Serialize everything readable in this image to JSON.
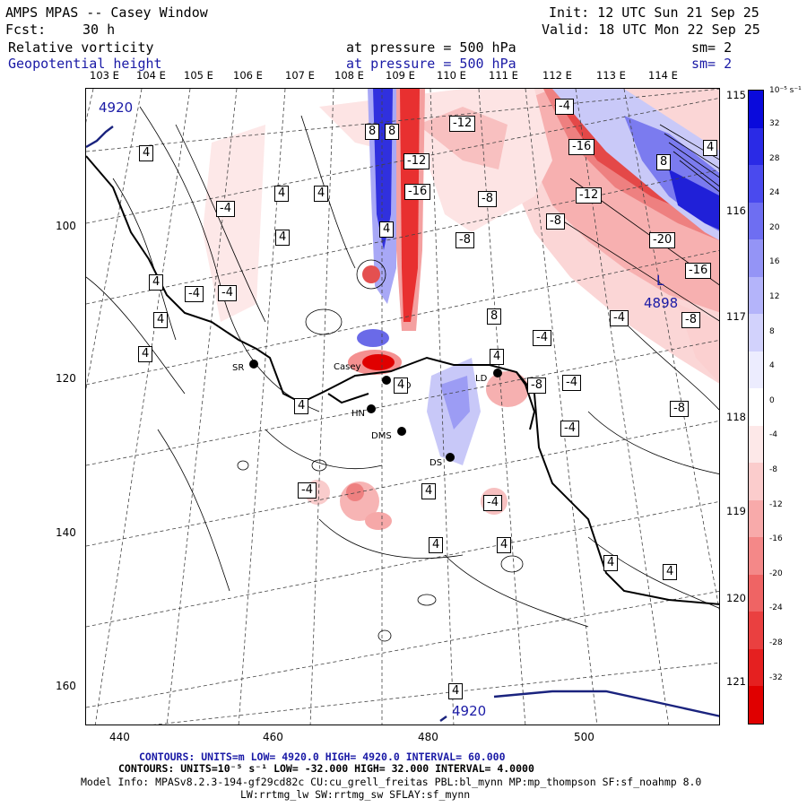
{
  "header": {
    "title": "AMPS MPAS -- Casey Window",
    "init": "Init: 12 UTC Sun 21 Sep 25",
    "fcst_label": "Fcst:",
    "fcst_value": "30 h",
    "valid": "Valid: 18 UTC Mon 22 Sep 25",
    "field1_name": "Relative vorticity",
    "field1_level": "at pressure =  500 hPa",
    "field1_sm": "sm= 2",
    "field2_name": "Geopotential height",
    "field2_level": "at pressure =  500 hPa",
    "field2_sm": "sm= 2"
  },
  "axes": {
    "lon_labels": [
      "103 E",
      "104 E",
      "105 E",
      "106 E",
      "107 E",
      "108 E",
      "109 E",
      "110 E",
      "111 E",
      "112 E",
      "113 E",
      "114 E"
    ],
    "lat_labels": [
      "115 E",
      "116 E",
      "117 E",
      "118 E",
      "119 E",
      "120 E",
      "121 E"
    ],
    "x_ticks": [
      "440",
      "460",
      "480",
      "500"
    ],
    "y_ticks": [
      "100",
      "120",
      "140",
      "160"
    ]
  },
  "colorbar": {
    "unit": "10⁻⁵ s⁻¹",
    "labels": [
      "32",
      "28",
      "24",
      "20",
      "16",
      "12",
      "8",
      "4",
      "0",
      "-4",
      "-8",
      "-12",
      "-16",
      "-20",
      "-24",
      "-28",
      "-32"
    ],
    "colors": [
      "#0a0adc",
      "#2a2ae6",
      "#4a4aee",
      "#6e6ef2",
      "#9494f6",
      "#b4b4fa",
      "#d2d2fc",
      "#ececfe",
      "#ffffff",
      "#fde8e8",
      "#fbcccc",
      "#f8aaaa",
      "#f48888",
      "#ef6464",
      "#ea4040",
      "#e52020",
      "#e00000"
    ]
  },
  "map": {
    "stations": [
      "SR",
      "Casey",
      "HN",
      "DMS",
      "DS",
      "LD",
      "MO"
    ],
    "contour_labels": [
      "4920",
      "4920",
      "4898"
    ],
    "low_marker": "L",
    "vort_labels": [
      "4",
      "8",
      "-4",
      "-8",
      "-12",
      "-16",
      "-20"
    ]
  },
  "footer": {
    "line1": "CONTOURS:  UNITS=m  LOW=  4920.0          HIGH=  4920.0       INTERVAL=   60.000",
    "line2": "CONTOURS:  UNITS=10⁻⁵ s⁻¹  LOW= -32.000        HIGH=  32.000      INTERVAL=   4.0000",
    "line3": "Model Info: MPASv8.2.3-194-gf29cd82c CU:cu_grell_freitas PBL:bl_mynn MP:mp_thompson SF:sf_noahmp 8.0",
    "line4": "LW:rrtmg_lw SW:rrtmg_sw SFLAY:sf_mynn"
  }
}
